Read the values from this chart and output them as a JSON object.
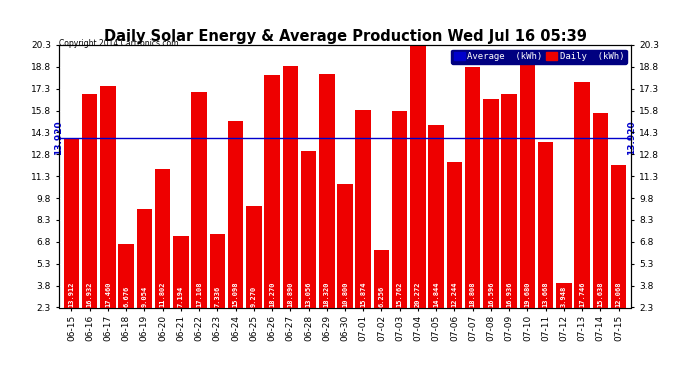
{
  "title": "Daily Solar Energy & Average Production Wed Jul 16 05:39",
  "copyright": "Copyright 2014 Cartronics.com",
  "categories": [
    "06-15",
    "06-16",
    "06-17",
    "06-18",
    "06-19",
    "06-20",
    "06-21",
    "06-22",
    "06-23",
    "06-24",
    "06-25",
    "06-26",
    "06-27",
    "06-28",
    "06-29",
    "06-30",
    "07-01",
    "07-02",
    "07-03",
    "07-04",
    "07-05",
    "07-06",
    "07-07",
    "07-08",
    "07-09",
    "07-10",
    "07-11",
    "07-12",
    "07-13",
    "07-14",
    "07-15"
  ],
  "values": [
    13.912,
    16.932,
    17.46,
    6.676,
    9.054,
    11.802,
    7.194,
    17.108,
    7.336,
    15.098,
    9.27,
    18.27,
    18.89,
    13.056,
    18.32,
    10.8,
    15.874,
    6.256,
    15.762,
    20.272,
    14.844,
    12.244,
    18.808,
    16.596,
    16.936,
    19.68,
    13.668,
    3.948,
    17.746,
    15.638,
    12.068
  ],
  "average": 13.92,
  "bar_color": "#ee0000",
  "average_line_color": "#0000cc",
  "background_color": "#ffffff",
  "ylim_min": 2.3,
  "ylim_max": 20.3,
  "yticks": [
    2.3,
    3.8,
    5.3,
    6.8,
    8.3,
    9.8,
    11.3,
    12.8,
    14.3,
    15.8,
    17.3,
    18.8,
    20.3
  ],
  "legend_avg_color": "#0000cc",
  "legend_daily_color": "#ee0000",
  "value_fontsize": 5.0,
  "tick_fontsize": 6.5,
  "title_fontsize": 10.5,
  "avg_label": "13.920"
}
